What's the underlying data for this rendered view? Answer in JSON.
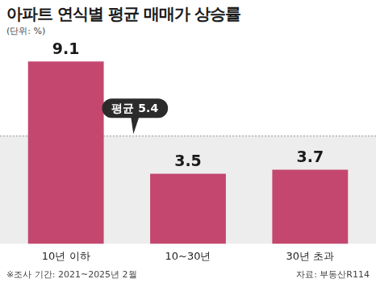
{
  "chart_data": {
    "type": "bar",
    "title": "아파트 연식별 평균 매매가 상승률",
    "subtitle": "(단위: %)",
    "categories": [
      "10년 이하",
      "10~30년",
      "30년 초과"
    ],
    "values": [
      9.1,
      3.5,
      3.7
    ],
    "color": "#c3476f",
    "ylim": [
      0,
      10
    ],
    "grid": false,
    "data_labels": true,
    "tick_labels": "x",
    "annotations": [
      {
        "label": "평균 5.4",
        "value": 5.4
      }
    ],
    "footnote": "※조사 기간: 2021~2025년 2월",
    "source": "자료: 부동산R114"
  }
}
